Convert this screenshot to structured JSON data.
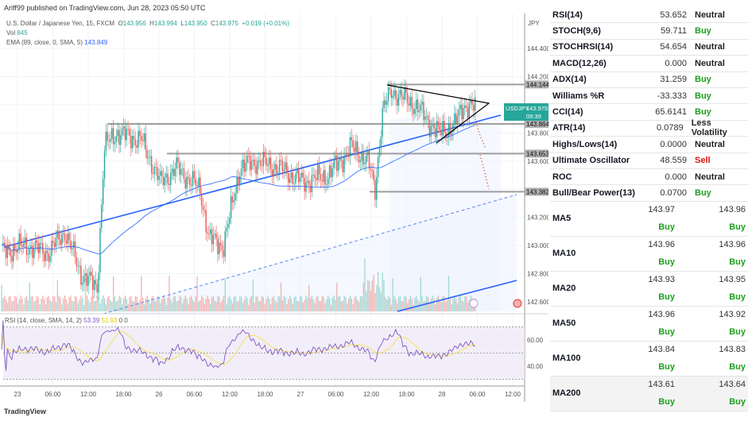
{
  "header": {
    "published": "Ariff99 published on TradingView.com, Jun 28, 2023 05:50 UTC"
  },
  "legend": {
    "symbol": "U.S. Dollar / Japanese Yen, 15, FXCM",
    "o_label": "O",
    "open": "143.956",
    "h_label": "H",
    "high": "143.994",
    "l_label": "L",
    "low": "143.950",
    "c_label": "C",
    "close": "143.975",
    "change": "+0.019 (+0.01%)",
    "vol_label": "Vol",
    "vol": "845",
    "ema_label": "EMA (89, close, 0, SMA, 5)",
    "ema": "143.849"
  },
  "rsi_legend": {
    "label": "RSI (14, close, SMA, 14, 2)",
    "rsi": "53.39",
    "sma": "51.93",
    "v1": "0",
    "v2": "0"
  },
  "footer": {
    "logo": "TradingView"
  },
  "colors": {
    "up": "#26a69a",
    "down": "#ef5350",
    "trend": "#2962ff",
    "ema": "#2962ff",
    "rsi": "#7e57c2",
    "rsi_sma": "#f5e04a"
  },
  "chart_data": {
    "type": "candlestick",
    "currency": "JPY",
    "symbol_tag": "USDJPY",
    "last_price": "143.975",
    "countdown": "09:39",
    "ylim": [
      142.55,
      144.68
    ],
    "y_ticks": [
      "144.400",
      "144.200",
      "143.800",
      "143.600",
      "143.200",
      "143.000",
      "142.800",
      "142.600"
    ],
    "x_ticks": [
      "23",
      "06:00",
      "12:00",
      "18:00",
      "26",
      "06:00",
      "12:00",
      "18:00",
      "27",
      "06:00",
      "12:00",
      "18:00",
      "28",
      "06:00",
      "12:00"
    ],
    "price_path_bars": [
      0,
      16,
      32,
      43,
      54,
      65,
      70,
      78,
      95,
      108,
      119,
      135,
      141,
      151,
      162,
      173,
      189,
      205,
      222,
      238,
      249,
      254,
      259,
      265,
      281,
      297,
      308,
      314,
      322
    ],
    "price_path": [
      142.95,
      143.0,
      142.95,
      143.1,
      142.8,
      142.7,
      143.7,
      143.8,
      143.75,
      143.45,
      143.55,
      143.4,
      143.05,
      143.0,
      143.55,
      143.6,
      143.55,
      143.45,
      143.5,
      143.7,
      143.6,
      143.4,
      143.95,
      144.1,
      144.0,
      143.8,
      143.85,
      144.0,
      143.975
    ],
    "levels": [
      {
        "price": 144.144,
        "label": "144.144"
      },
      {
        "price": 143.864,
        "label": "143.864"
      },
      {
        "price": 143.653,
        "label": "143.653"
      },
      {
        "price": 143.382,
        "label": "143.382"
      }
    ],
    "rsi_ticks": [
      "60.00",
      "40.00"
    ],
    "rsi_levels": [
      70,
      50,
      30
    ]
  },
  "oscillators": [
    {
      "name": "RSI(14)",
      "value": "53.652",
      "signal": "Neutral",
      "cls": "neu"
    },
    {
      "name": "STOCH(9,6)",
      "value": "59.711",
      "signal": "Buy",
      "cls": "buy"
    },
    {
      "name": "STOCHRSI(14)",
      "value": "54.654",
      "signal": "Neutral",
      "cls": "neu"
    },
    {
      "name": "MACD(12,26)",
      "value": "0.000",
      "signal": "Neutral",
      "cls": "neu"
    },
    {
      "name": "ADX(14)",
      "value": "31.259",
      "signal": "Buy",
      "cls": "buy"
    },
    {
      "name": "Williams %R",
      "value": "-33.333",
      "signal": "Buy",
      "cls": "buy"
    },
    {
      "name": "CCI(14)",
      "value": "65.6141",
      "signal": "Buy",
      "cls": "buy"
    },
    {
      "name": "ATR(14)",
      "value": "0.0789",
      "signal": "Less Volatility",
      "cls": "neu"
    },
    {
      "name": "Highs/Lows(14)",
      "value": "0.0000",
      "signal": "Neutral",
      "cls": "neu"
    },
    {
      "name": "Ultimate Oscillator",
      "value": "48.559",
      "signal": "Sell",
      "cls": "sell"
    },
    {
      "name": "ROC",
      "value": "0.000",
      "signal": "Neutral",
      "cls": "neu"
    },
    {
      "name": "Bull/Bear Power(13)",
      "value": "0.0700",
      "signal": "Buy",
      "cls": "buy"
    }
  ],
  "moving_averages": [
    {
      "name": "MA5",
      "simple": "143.97",
      "simple_signal": "Buy",
      "exp": "143.96",
      "exp_signal": "Buy"
    },
    {
      "name": "MA10",
      "simple": "143.96",
      "simple_signal": "Buy",
      "exp": "143.96",
      "exp_signal": "Buy"
    },
    {
      "name": "MA20",
      "simple": "143.93",
      "simple_signal": "Buy",
      "exp": "143.95",
      "exp_signal": "Buy"
    },
    {
      "name": "MA50",
      "simple": "143.96",
      "simple_signal": "Buy",
      "exp": "143.92",
      "exp_signal": "Buy"
    },
    {
      "name": "MA100",
      "simple": "143.84",
      "simple_signal": "Buy",
      "exp": "143.83",
      "exp_signal": "Buy"
    },
    {
      "name": "MA200",
      "simple": "143.61",
      "simple_signal": "Buy",
      "exp": "143.64",
      "exp_signal": "Buy"
    }
  ]
}
